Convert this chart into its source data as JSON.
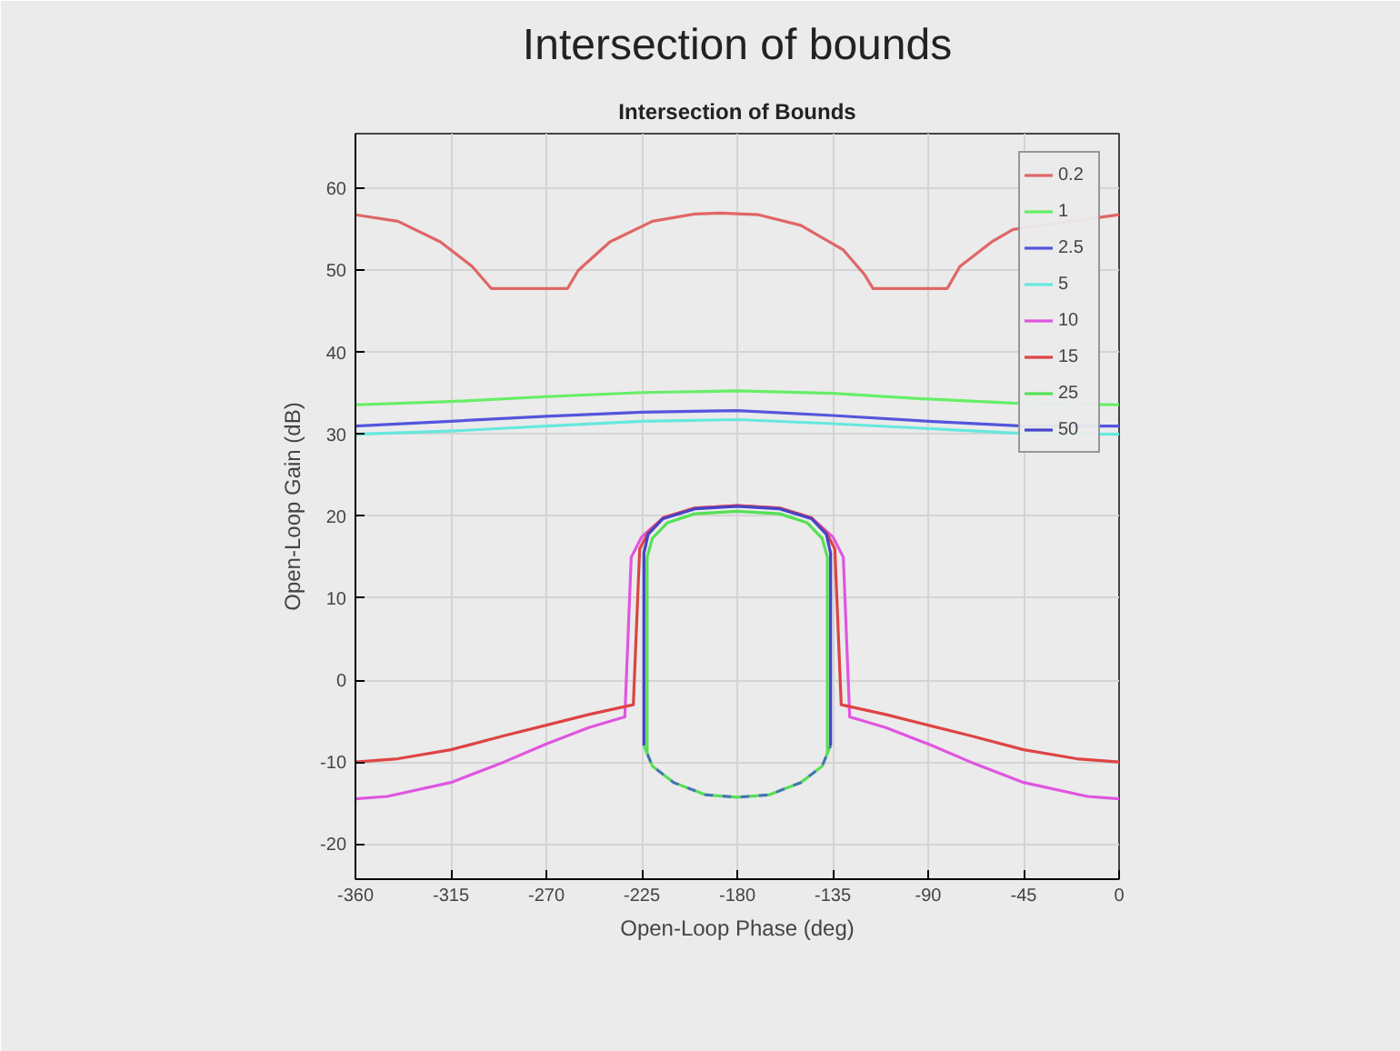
{
  "chart_data": {
    "type": "line",
    "title": "Intersection of bounds",
    "subtitle": "Intersection of Bounds",
    "xlabel": "Open-Loop Phase (deg)",
    "ylabel": "Open-Loop Gain (dB)",
    "xlim": [
      -360,
      0
    ],
    "ylim": [
      -24.3,
      66.7
    ],
    "xticks": [
      -360,
      -315,
      -270,
      -225,
      -180,
      -135,
      -90,
      -45,
      0
    ],
    "yticks": [
      -20,
      -10,
      0,
      10,
      20,
      30,
      40,
      50,
      60
    ],
    "grid": true,
    "legend": "top right",
    "line_style": "solid",
    "series": [
      {
        "name": "0.2",
        "color": "#e06666",
        "x": [
          -360,
          -340,
          -320,
          -305,
          -296,
          -260,
          -255,
          -240,
          -220,
          -200,
          -188,
          -170,
          -150,
          -130,
          -120,
          -116,
          -81,
          -75,
          -60,
          -50,
          0
        ],
        "values": [
          56.8,
          56,
          53.5,
          50.5,
          47.8,
          47.8,
          50,
          53.5,
          56,
          56.9,
          57,
          56.8,
          55.5,
          52.5,
          49.5,
          47.8,
          47.8,
          50.5,
          53.5,
          55,
          56.8
        ]
      },
      {
        "name": "1",
        "color": "#66ee66",
        "x": [
          -360,
          -315,
          -270,
          -225,
          -180,
          -135,
          -90,
          -50,
          0
        ],
        "values": [
          33.6,
          34,
          34.6,
          35.1,
          35.3,
          35,
          34.3,
          33.8,
          33.6
        ]
      },
      {
        "name": "2.5",
        "color": "#5555dd",
        "x": [
          -360,
          -315,
          -270,
          -225,
          -180,
          -135,
          -90,
          -45,
          0
        ],
        "values": [
          31,
          31.6,
          32.2,
          32.7,
          32.9,
          32.3,
          31.6,
          31,
          31
        ]
      },
      {
        "name": "5",
        "color": "#66e8dd",
        "x": [
          -360,
          -315,
          -270,
          -225,
          -180,
          -135,
          -90,
          -45,
          0
        ],
        "values": [
          30,
          30.4,
          31,
          31.6,
          31.8,
          31.3,
          30.7,
          30.1,
          30
        ]
      },
      {
        "name": "10",
        "color": "#e055e0",
        "x": [
          -360,
          -345,
          -315,
          -290,
          -270,
          -250,
          -233,
          -230,
          -225,
          -215,
          -200,
          -180,
          -160,
          -145,
          -135,
          -130,
          -127,
          -110,
          -90,
          -70,
          -45,
          -15,
          0
        ],
        "values": [
          -14.5,
          -14.2,
          -12.5,
          -10,
          -7.8,
          -5.8,
          -4.5,
          15,
          17.5,
          19.8,
          21,
          21.3,
          21,
          19.8,
          17.5,
          15,
          -4.5,
          -5.8,
          -7.8,
          -10,
          -12.5,
          -14.2,
          -14.5
        ]
      },
      {
        "name": "15",
        "color": "#dd4444",
        "x": [
          -360,
          -340,
          -315,
          -290,
          -270,
          -250,
          -229,
          -226,
          -222,
          -215,
          -200,
          -180,
          -160,
          -145,
          -138,
          -134,
          -131,
          -110,
          -90,
          -70,
          -45,
          -20,
          0
        ],
        "values": [
          -10,
          -9.6,
          -8.5,
          -6.8,
          -5.5,
          -4.2,
          -3,
          16,
          18,
          19.8,
          21,
          21.3,
          21,
          19.8,
          18,
          16,
          -3,
          -4.2,
          -5.5,
          -6.8,
          -8.5,
          -9.6,
          -10
        ]
      },
      {
        "name": "25",
        "color": "#55e055",
        "x": [
          -222.5,
          -222.5,
          -220,
          -213,
          -200,
          -180,
          -160,
          -147,
          -140,
          -137.5,
          -137.5
        ],
        "values": [
          -9,
          15,
          17.3,
          19.2,
          20.3,
          20.6,
          20.3,
          19.2,
          17.3,
          15,
          -9
        ]
      },
      {
        "name": "50",
        "color": "#4444cc",
        "x": [
          -224,
          -224,
          -222,
          -215,
          -200,
          -180,
          -160,
          -145,
          -138,
          -136,
          -136
        ],
        "values": [
          -8,
          15.5,
          17.8,
          19.7,
          20.9,
          21.2,
          20.9,
          19.7,
          17.8,
          15.5,
          -8
        ]
      },
      {
        "color": "#55e055",
        "line_style": "dashed",
        "x": [
          -224,
          -220,
          -210,
          -195,
          -180,
          -165,
          -150,
          -140,
          -136
        ],
        "values": [
          -8,
          -10.5,
          -12.5,
          -14,
          -14.3,
          -14,
          -12.5,
          -10.5,
          -8
        ]
      },
      {
        "color": "#4477aa",
        "line_style": "dashed",
        "x": [
          -224,
          -220,
          -210,
          -195,
          -180,
          -165,
          -150,
          -140,
          -136
        ],
        "values": [
          -8,
          -10.5,
          -12.5,
          -14,
          -14.3,
          -14,
          -12.5,
          -10.5,
          -8
        ]
      }
    ]
  }
}
